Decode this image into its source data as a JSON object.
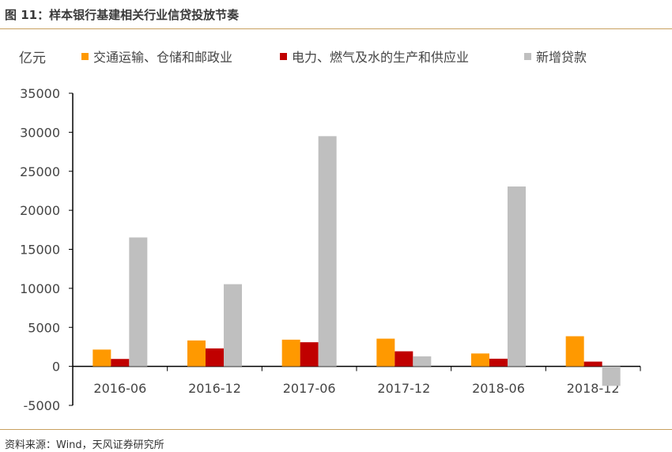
{
  "title": "图 11：样本银行基建相关行业信贷投放节奏",
  "source": "资料来源：Wind，天风证券研究所",
  "chart_data": {
    "type": "bar",
    "ylabel": "亿元",
    "ylim": [
      -5000,
      35000
    ],
    "yticks": [
      -5000,
      0,
      5000,
      10000,
      15000,
      20000,
      25000,
      30000,
      35000
    ],
    "grid": false,
    "legend_position": "top",
    "categories": [
      "2016-06",
      "2016-12",
      "2017-06",
      "2017-12",
      "2018-06",
      "2018-12"
    ],
    "series": [
      {
        "name": "交通运输、仓储和邮政业",
        "color": "#FF9900",
        "values": [
          2150,
          3320,
          3420,
          3550,
          1650,
          3860
        ]
      },
      {
        "name": "电力、燃气及水的生产和供应业",
        "color": "#C00000",
        "values": [
          950,
          2300,
          3090,
          1930,
          980,
          610
        ]
      },
      {
        "name": "新增贷款",
        "color": "#BFBFBF",
        "values": [
          16520,
          10530,
          29500,
          1280,
          23050,
          -2500
        ]
      }
    ]
  }
}
